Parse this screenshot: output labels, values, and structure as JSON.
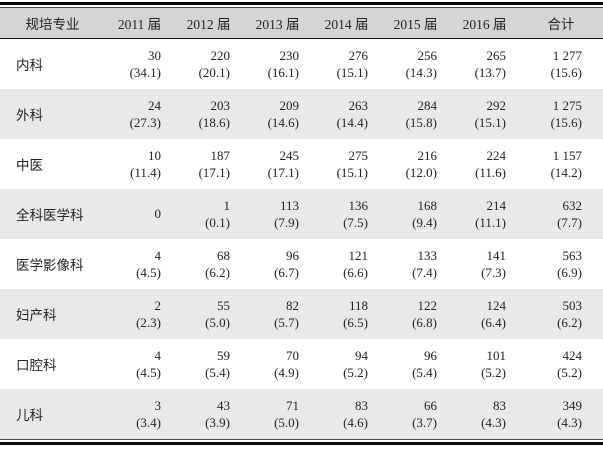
{
  "chart_data": {
    "type": "table",
    "title": "",
    "columns": [
      "规培专业",
      "2011 届",
      "2012 届",
      "2013 届",
      "2014 届",
      "2015 届",
      "2016 届",
      "合计"
    ],
    "rows": [
      {
        "label": "内科",
        "cells": [
          {
            "v": "30",
            "p": "(34.1)"
          },
          {
            "v": "220",
            "p": "(20.1)"
          },
          {
            "v": "230",
            "p": "(16.1)"
          },
          {
            "v": "276",
            "p": "(15.1)"
          },
          {
            "v": "256",
            "p": "(14.3)"
          },
          {
            "v": "265",
            "p": "(13.7)"
          },
          {
            "v": "1 277",
            "p": "(15.6)"
          }
        ]
      },
      {
        "label": "外科",
        "cells": [
          {
            "v": "24",
            "p": "(27.3)"
          },
          {
            "v": "203",
            "p": "(18.6)"
          },
          {
            "v": "209",
            "p": "(14.6)"
          },
          {
            "v": "263",
            "p": "(14.4)"
          },
          {
            "v": "284",
            "p": "(15.8)"
          },
          {
            "v": "292",
            "p": "(15.1)"
          },
          {
            "v": "1 275",
            "p": "(15.6)"
          }
        ]
      },
      {
        "label": "中医",
        "cells": [
          {
            "v": "10",
            "p": "(11.4)"
          },
          {
            "v": "187",
            "p": "(17.1)"
          },
          {
            "v": "245",
            "p": "(17.1)"
          },
          {
            "v": "275",
            "p": "(15.1)"
          },
          {
            "v": "216",
            "p": "(12.0)"
          },
          {
            "v": "224",
            "p": "(11.6)"
          },
          {
            "v": "1 157",
            "p": "(14.2)"
          }
        ]
      },
      {
        "label": "全科医学科",
        "cells": [
          {
            "v": "0",
            "p": ""
          },
          {
            "v": "1",
            "p": "(0.1)"
          },
          {
            "v": "113",
            "p": "(7.9)"
          },
          {
            "v": "136",
            "p": "(7.5)"
          },
          {
            "v": "168",
            "p": "(9.4)"
          },
          {
            "v": "214",
            "p": "(11.1)"
          },
          {
            "v": "632",
            "p": "(7.7)"
          }
        ]
      },
      {
        "label": "医学影像科",
        "cells": [
          {
            "v": "4",
            "p": "(4.5)"
          },
          {
            "v": "68",
            "p": "(6.2)"
          },
          {
            "v": "96",
            "p": "(6.7)"
          },
          {
            "v": "121",
            "p": "(6.6)"
          },
          {
            "v": "133",
            "p": "(7.4)"
          },
          {
            "v": "141",
            "p": "(7.3)"
          },
          {
            "v": "563",
            "p": "(6.9)"
          }
        ]
      },
      {
        "label": "妇产科",
        "cells": [
          {
            "v": "2",
            "p": "(2.3)"
          },
          {
            "v": "55",
            "p": "(5.0)"
          },
          {
            "v": "82",
            "p": "(5.7)"
          },
          {
            "v": "118",
            "p": "(6.5)"
          },
          {
            "v": "122",
            "p": "(6.8)"
          },
          {
            "v": "124",
            "p": "(6.4)"
          },
          {
            "v": "503",
            "p": "(6.2)"
          }
        ]
      },
      {
        "label": "口腔科",
        "cells": [
          {
            "v": "4",
            "p": "(4.5)"
          },
          {
            "v": "59",
            "p": "(5.4)"
          },
          {
            "v": "70",
            "p": "(4.9)"
          },
          {
            "v": "94",
            "p": "(5.2)"
          },
          {
            "v": "96",
            "p": "(5.4)"
          },
          {
            "v": "101",
            "p": "(5.2)"
          },
          {
            "v": "424",
            "p": "(5.2)"
          }
        ]
      },
      {
        "label": "儿科",
        "cells": [
          {
            "v": "3",
            "p": "(3.4)"
          },
          {
            "v": "43",
            "p": "(3.9)"
          },
          {
            "v": "71",
            "p": "(5.0)"
          },
          {
            "v": "83",
            "p": "(4.6)"
          },
          {
            "v": "66",
            "p": "(3.7)"
          },
          {
            "v": "83",
            "p": "(4.3)"
          },
          {
            "v": "349",
            "p": "(4.3)"
          }
        ]
      }
    ],
    "colors": {
      "header_bg": "#d5d5d5",
      "stripe_bg": "#e9e9e9",
      "text": "#222222",
      "rule": "#0a0a0a"
    }
  }
}
